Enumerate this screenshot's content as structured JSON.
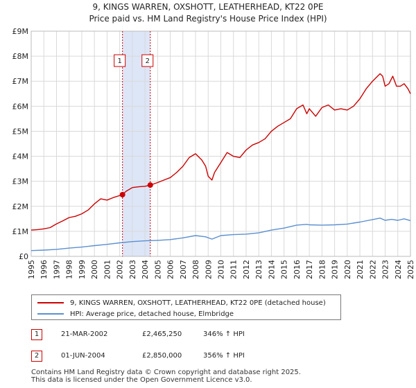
{
  "header": {
    "title_line1": "9, KINGS WARREN, OXSHOTT, LEATHERHEAD, KT22 0PE",
    "title_line2": "Price paid vs. HM Land Registry's House Price Index (HPI)"
  },
  "colors": {
    "property": "#cc0000",
    "hpi": "#5b8fd0",
    "band": "#dde6f7",
    "grid": "#d9d9d9",
    "marker_box": "#cc0000"
  },
  "legend": {
    "property_label": "9, KINGS WARREN, OXSHOTT, LEATHERHEAD, KT22 0PE (detached house)",
    "hpi_label": "HPI: Average price, detached house, Elmbridge"
  },
  "sales": [
    {
      "num": "1",
      "date": "21-MAR-2002",
      "price": "£2,465,250",
      "hpi": "346% ↑ HPI"
    },
    {
      "num": "2",
      "date": "01-JUN-2004",
      "price": "£2,850,000",
      "hpi": "356% ↑ HPI"
    }
  ],
  "footer": {
    "line1": "Contains HM Land Registry data © Crown copyright and database right 2025.",
    "line2": "This data is licensed under the Open Government Licence v3.0."
  },
  "chart_data": {
    "type": "line",
    "title": "9, KINGS WARREN, OXSHOTT, LEATHERHEAD, KT22 0PE",
    "subtitle": "Price paid vs. HM Land Registry's House Price Index (HPI)",
    "xlabel": "",
    "ylabel": "",
    "xlim": [
      1995,
      2025
    ],
    "ylim": [
      0,
      9000000
    ],
    "x_ticks": [
      "1995",
      "1996",
      "1997",
      "1998",
      "1999",
      "2000",
      "2001",
      "2002",
      "2003",
      "2004",
      "2005",
      "2006",
      "2007",
      "2008",
      "2009",
      "2010",
      "2011",
      "2012",
      "2013",
      "2014",
      "2015",
      "2016",
      "2017",
      "2018",
      "2019",
      "2020",
      "2021",
      "2022",
      "2023",
      "2024",
      "2025"
    ],
    "y_ticks": [
      {
        "value": 0,
        "label": "£0"
      },
      {
        "value": 1000000,
        "label": "£1M"
      },
      {
        "value": 2000000,
        "label": "£2M"
      },
      {
        "value": 3000000,
        "label": "£3M"
      },
      {
        "value": 4000000,
        "label": "£4M"
      },
      {
        "value": 5000000,
        "label": "£5M"
      },
      {
        "value": 6000000,
        "label": "£6M"
      },
      {
        "value": 7000000,
        "label": "£7M"
      },
      {
        "value": 8000000,
        "label": "£8M"
      },
      {
        "value": 9000000,
        "label": "£9M"
      }
    ],
    "grid": true,
    "shaded_range": [
      2002.22,
      2004.42
    ],
    "event_markers": [
      {
        "label": "1",
        "x": 2002.22
      },
      {
        "label": "2",
        "x": 2004.42
      }
    ],
    "sale_points": [
      {
        "label": "1",
        "x": 2002.22,
        "y": 2465250
      },
      {
        "label": "2",
        "x": 2004.42,
        "y": 2850000
      }
    ],
    "series": [
      {
        "name": "9, KINGS WARREN, OXSHOTT, LEATHERHEAD, KT22 0PE (detached house)",
        "color": "#cc0000",
        "x": [
          1995.0,
          1995.5,
          1996.0,
          1996.5,
          1997.0,
          1997.5,
          1998.0,
          1998.5,
          1999.0,
          1999.5,
          2000.0,
          2000.5,
          2001.0,
          2001.5,
          2002.22,
          2002.5,
          2003.0,
          2003.5,
          2004.0,
          2004.42,
          2005.0,
          2005.5,
          2006.0,
          2006.5,
          2007.0,
          2007.5,
          2008.0,
          2008.5,
          2008.8,
          2009.0,
          2009.3,
          2009.5,
          2010.0,
          2010.5,
          2011.0,
          2011.5,
          2012.0,
          2012.5,
          2013.0,
          2013.5,
          2014.0,
          2014.5,
          2015.0,
          2015.5,
          2016.0,
          2016.5,
          2016.8,
          2017.0,
          2017.5,
          2018.0,
          2018.5,
          2019.0,
          2019.5,
          2020.0,
          2020.5,
          2021.0,
          2021.5,
          2022.0,
          2022.3,
          2022.6,
          2022.8,
          2023.0,
          2023.3,
          2023.6,
          2023.9,
          2024.2,
          2024.5,
          2024.8,
          2025.0
        ],
        "y": [
          1050000,
          1070000,
          1100000,
          1150000,
          1300000,
          1420000,
          1550000,
          1600000,
          1700000,
          1850000,
          2100000,
          2300000,
          2250000,
          2350000,
          2465250,
          2600000,
          2750000,
          2780000,
          2800000,
          2850000,
          2950000,
          3050000,
          3150000,
          3350000,
          3600000,
          3950000,
          4100000,
          3850000,
          3600000,
          3200000,
          3050000,
          3350000,
          3750000,
          4150000,
          4000000,
          3950000,
          4250000,
          4450000,
          4550000,
          4700000,
          5000000,
          5200000,
          5350000,
          5500000,
          5900000,
          6050000,
          5700000,
          5900000,
          5600000,
          5950000,
          6050000,
          5850000,
          5900000,
          5850000,
          6000000,
          6300000,
          6700000,
          7000000,
          7150000,
          7300000,
          7200000,
          6800000,
          6900000,
          7200000,
          6800000,
          6800000,
          6900000,
          6700000,
          6500000
        ]
      },
      {
        "name": "HPI: Average price, detached house, Elmbridge",
        "color": "#5b8fd0",
        "x": [
          1995.0,
          1996.0,
          1997.0,
          1998.0,
          1999.0,
          2000.0,
          2001.0,
          2002.0,
          2003.0,
          2004.0,
          2005.0,
          2006.0,
          2007.0,
          2008.0,
          2008.8,
          2009.3,
          2010.0,
          2011.0,
          2012.0,
          2013.0,
          2014.0,
          2015.0,
          2016.0,
          2016.8,
          2017.0,
          2018.0,
          2019.0,
          2020.0,
          2021.0,
          2022.0,
          2022.6,
          2023.0,
          2023.5,
          2024.0,
          2024.5,
          2025.0
        ],
        "y": [
          230000,
          250000,
          280000,
          330000,
          370000,
          430000,
          480000,
          540000,
          590000,
          620000,
          640000,
          670000,
          740000,
          830000,
          780000,
          690000,
          830000,
          870000,
          890000,
          940000,
          1050000,
          1130000,
          1250000,
          1280000,
          1260000,
          1250000,
          1260000,
          1290000,
          1370000,
          1470000,
          1530000,
          1440000,
          1480000,
          1440000,
          1500000,
          1430000
        ]
      }
    ]
  }
}
